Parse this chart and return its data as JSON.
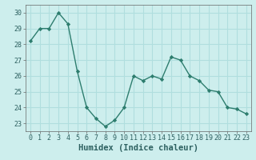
{
  "x": [
    0,
    1,
    2,
    3,
    4,
    5,
    6,
    7,
    8,
    9,
    10,
    11,
    12,
    13,
    14,
    15,
    16,
    17,
    18,
    19,
    20,
    21,
    22,
    23
  ],
  "y": [
    28.2,
    29.0,
    29.0,
    30.0,
    29.3,
    26.3,
    24.0,
    23.3,
    22.8,
    23.2,
    24.0,
    26.0,
    25.7,
    26.0,
    25.8,
    27.2,
    27.0,
    26.0,
    25.7,
    25.1,
    25.0,
    24.0,
    23.9,
    23.6
  ],
  "line_color": "#2d7d6e",
  "marker": "D",
  "marker_size": 2.2,
  "linewidth": 1.0,
  "xlabel": "Humidex (Indice chaleur)",
  "xlim": [
    -0.5,
    23.5
  ],
  "ylim": [
    22.5,
    30.5
  ],
  "yticks": [
    23,
    24,
    25,
    26,
    27,
    28,
    29,
    30
  ],
  "xticks": [
    0,
    1,
    2,
    3,
    4,
    5,
    6,
    7,
    8,
    9,
    10,
    11,
    12,
    13,
    14,
    15,
    16,
    17,
    18,
    19,
    20,
    21,
    22,
    23
  ],
  "bg_color": "#cdeeed",
  "grid_color": "#b0dede",
  "tick_label_fontsize": 6.0,
  "xlabel_fontsize": 7.5
}
